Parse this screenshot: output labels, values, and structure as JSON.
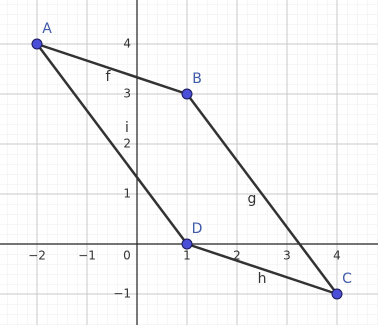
{
  "chart_data": {
    "type": "geometry",
    "xlim": [
      -2.74,
      4.82
    ],
    "ylim": [
      -1.62,
      4.88
    ],
    "xticks": [
      {
        "value": -2,
        "label": "−2"
      },
      {
        "value": -1,
        "label": "−1"
      },
      0,
      1,
      2,
      3,
      4
    ],
    "yticks": [
      {
        "value": -1,
        "label": "−1"
      },
      1,
      2,
      3,
      4
    ],
    "grid": true,
    "point_color": "#4b4fd8",
    "label_color": "#3f5aa8",
    "segment_color": "#333333",
    "points": {
      "labels": [
        "A",
        "B",
        "C",
        "D"
      ],
      "x": [
        -2,
        1,
        4,
        1
      ],
      "y": [
        4,
        3,
        -1,
        0
      ]
    },
    "segments": [
      {
        "label": "f",
        "x": [
          -2,
          1
        ],
        "y": [
          4,
          3
        ]
      },
      {
        "label": "g",
        "x": [
          1,
          4
        ],
        "y": [
          3,
          -1
        ]
      },
      {
        "label": "h",
        "x": [
          1,
          4
        ],
        "y": [
          0,
          -1
        ]
      },
      {
        "label": "i",
        "x": [
          -2,
          1
        ],
        "y": [
          4,
          0
        ]
      }
    ]
  }
}
